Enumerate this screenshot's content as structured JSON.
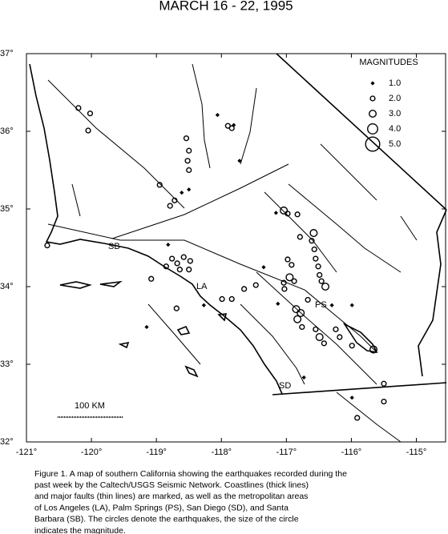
{
  "title": "MARCH 16 - 22, 1995",
  "map": {
    "lonlim": [
      -121,
      -114.55
    ],
    "latlim": [
      32,
      37
    ],
    "lon_ticks": [
      {
        "value": -121,
        "label": "-121°"
      },
      {
        "value": -120,
        "label": "-120°"
      },
      {
        "value": -119,
        "label": "-119°"
      },
      {
        "value": -118,
        "label": "-118°"
      },
      {
        "value": -117,
        "label": "-117°"
      },
      {
        "value": -116,
        "label": "-116°"
      },
      {
        "value": -115,
        "label": "-115°"
      }
    ],
    "lat_ticks": [
      {
        "value": 37,
        "label": "37°"
      },
      {
        "value": 36,
        "label": "36°"
      },
      {
        "value": 35,
        "label": "35°"
      },
      {
        "value": 34,
        "label": "34°"
      },
      {
        "value": 33,
        "label": "33°"
      },
      {
        "value": 32,
        "label": "32°"
      }
    ],
    "legend": {
      "title": "MAGNITUDES",
      "items": [
        {
          "value": 1,
          "label": "1.0"
        },
        {
          "value": 2,
          "label": "2.0"
        },
        {
          "value": 3,
          "label": "3.0"
        },
        {
          "value": 4,
          "label": "4.0"
        },
        {
          "value": 5,
          "label": "5.0"
        }
      ]
    },
    "places": [
      "SB",
      "LA",
      "PS",
      "SD"
    ],
    "scale_label": "100 KM",
    "quakes": [
      {
        "lon": -120.2,
        "lat": 36.3,
        "mag": 2
      },
      {
        "lon": -120.02,
        "lat": 36.23,
        "mag": 2
      },
      {
        "lon": -120.05,
        "lat": 36.01,
        "mag": 2
      },
      {
        "lon": -120.68,
        "lat": 34.53,
        "mag": 2
      },
      {
        "lon": -118.54,
        "lat": 35.91,
        "mag": 2
      },
      {
        "lon": -118.5,
        "lat": 35.75,
        "mag": 2
      },
      {
        "lon": -118.52,
        "lat": 35.62,
        "mag": 2
      },
      {
        "lon": -118.5,
        "lat": 35.5,
        "mag": 2
      },
      {
        "lon": -118.95,
        "lat": 35.31,
        "mag": 2
      },
      {
        "lon": -118.72,
        "lat": 35.11,
        "mag": 2
      },
      {
        "lon": -118.79,
        "lat": 35.04,
        "mag": 2
      },
      {
        "lon": -118.61,
        "lat": 35.21,
        "mag": 1
      },
      {
        "lon": -118.5,
        "lat": 35.25,
        "mag": 1
      },
      {
        "lon": -118.06,
        "lat": 36.21,
        "mag": 1
      },
      {
        "lon": -117.9,
        "lat": 36.07,
        "mag": 2
      },
      {
        "lon": -117.84,
        "lat": 36.04,
        "mag": 2
      },
      {
        "lon": -117.81,
        "lat": 36.08,
        "mag": 1
      },
      {
        "lon": -117.72,
        "lat": 35.62,
        "mag": 1
      },
      {
        "lon": -118.82,
        "lat": 34.54,
        "mag": 1
      },
      {
        "lon": -118.76,
        "lat": 34.36,
        "mag": 2
      },
      {
        "lon": -118.68,
        "lat": 34.3,
        "mag": 2
      },
      {
        "lon": -118.58,
        "lat": 34.38,
        "mag": 2
      },
      {
        "lon": -118.48,
        "lat": 34.33,
        "mag": 2
      },
      {
        "lon": -118.64,
        "lat": 34.22,
        "mag": 2
      },
      {
        "lon": -118.5,
        "lat": 34.22,
        "mag": 2
      },
      {
        "lon": -118.85,
        "lat": 34.26,
        "mag": 2
      },
      {
        "lon": -119.08,
        "lat": 34.1,
        "mag": 2
      },
      {
        "lon": -118.69,
        "lat": 33.72,
        "mag": 2
      },
      {
        "lon": -118.27,
        "lat": 33.76,
        "mag": 1
      },
      {
        "lon": -117.99,
        "lat": 33.84,
        "mag": 2
      },
      {
        "lon": -117.84,
        "lat": 33.84,
        "mag": 2
      },
      {
        "lon": -117.65,
        "lat": 33.97,
        "mag": 2
      },
      {
        "lon": -117.35,
        "lat": 34.25,
        "mag": 1
      },
      {
        "lon": -116.98,
        "lat": 34.35,
        "mag": 2
      },
      {
        "lon": -116.92,
        "lat": 34.28,
        "mag": 2
      },
      {
        "lon": -117.04,
        "lat": 34.98,
        "mag": 3
      },
      {
        "lon": -116.98,
        "lat": 34.94,
        "mag": 2
      },
      {
        "lon": -116.83,
        "lat": 34.93,
        "mag": 2
      },
      {
        "lon": -116.95,
        "lat": 34.12,
        "mag": 3
      },
      {
        "lon": -117.04,
        "lat": 34.05,
        "mag": 2
      },
      {
        "lon": -116.88,
        "lat": 34.07,
        "mag": 2
      },
      {
        "lon": -117.03,
        "lat": 33.97,
        "mag": 2
      },
      {
        "lon": -116.61,
        "lat": 34.59,
        "mag": 2
      },
      {
        "lon": -116.57,
        "lat": 34.48,
        "mag": 2
      },
      {
        "lon": -116.55,
        "lat": 34.36,
        "mag": 2
      },
      {
        "lon": -116.51,
        "lat": 34.26,
        "mag": 2
      },
      {
        "lon": -116.49,
        "lat": 34.15,
        "mag": 2
      },
      {
        "lon": -116.46,
        "lat": 34.07,
        "mag": 2
      },
      {
        "lon": -116.58,
        "lat": 34.69,
        "mag": 3
      },
      {
        "lon": -116.4,
        "lat": 34,
        "mag": 3
      },
      {
        "lon": -116.79,
        "lat": 34.64,
        "mag": 2
      },
      {
        "lon": -116.67,
        "lat": 33.83,
        "mag": 2
      },
      {
        "lon": -116.85,
        "lat": 33.71,
        "mag": 3
      },
      {
        "lon": -116.78,
        "lat": 33.66,
        "mag": 3
      },
      {
        "lon": -116.83,
        "lat": 33.58,
        "mag": 3
      },
      {
        "lon": -116.76,
        "lat": 33.48,
        "mag": 2
      },
      {
        "lon": -117.13,
        "lat": 33.78,
        "mag": 1
      },
      {
        "lon": -116.49,
        "lat": 33.35,
        "mag": 3
      },
      {
        "lon": -116.42,
        "lat": 33.27,
        "mag": 2
      },
      {
        "lon": -116.55,
        "lat": 33.45,
        "mag": 2
      },
      {
        "lon": -116.24,
        "lat": 33.45,
        "mag": 2
      },
      {
        "lon": -116.18,
        "lat": 33.35,
        "mag": 2
      },
      {
        "lon": -115.99,
        "lat": 33.24,
        "mag": 2
      },
      {
        "lon": -115.66,
        "lat": 33.19,
        "mag": 3
      },
      {
        "lon": -116.73,
        "lat": 32.83,
        "mag": 1
      },
      {
        "lon": -115.99,
        "lat": 32.57,
        "mag": 1
      },
      {
        "lon": -115.91,
        "lat": 32.31,
        "mag": 2
      },
      {
        "lon": -115.5,
        "lat": 32.75,
        "mag": 2
      },
      {
        "lon": -115.5,
        "lat": 32.52,
        "mag": 2
      },
      {
        "lon": -117.16,
        "lat": 34.95,
        "mag": 1
      },
      {
        "lon": -116.3,
        "lat": 33.76,
        "mag": 1
      },
      {
        "lon": -115.99,
        "lat": 33.76,
        "mag": 1
      },
      {
        "lon": -117.47,
        "lat": 34.02,
        "mag": 2
      },
      {
        "lon": -119.15,
        "lat": 33.48,
        "mag": 1
      }
    ]
  },
  "caption": [
    "Figure 1. A map of southern California showing the earthquakes recorded during the",
    "past week by the Caltech/USGS Seismic Network.  Coastlines (thick lines)",
    "and major faults (thin lines) are marked, as well as the metropolitan areas",
    "of Los Angeles (LA), Palm Springs (PS), San Diego (SD), and Santa",
    "Barbara (SB).  The circles denote the earthquakes, the size of the circle",
    "indicates the magnitude."
  ]
}
